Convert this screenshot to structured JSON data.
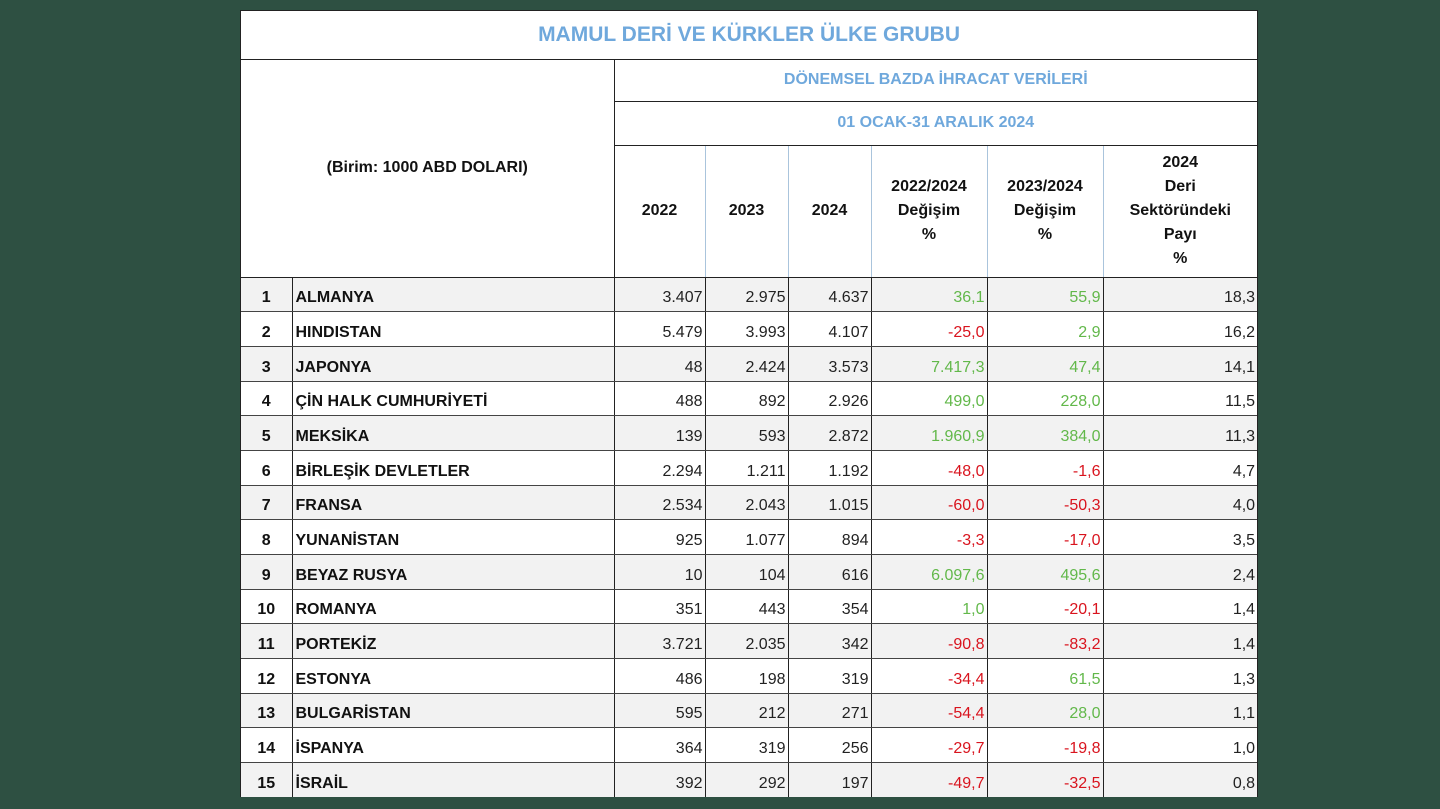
{
  "title": "MAMUL DERİ VE KÜRKLER ÜLKE GRUBU",
  "unit_label": "(Birim: 1000 ABD DOLARI)",
  "subtitle": "DÖNEMSEL BAZDA İHRACAT VERİLERİ",
  "period": "01 OCAK-31 ARALIK 2024",
  "columns": {
    "y2022": "2022",
    "y2023": "2023",
    "y2024": "2024",
    "chg2022_2024": "2022/2024\nDeğişim\n%",
    "chg2023_2024": "2023/2024\nDeğişim\n%",
    "share2024": "2024\nDeri\nSektöründeki\nPayı\n%"
  },
  "colors": {
    "title": "#6fa8dc",
    "positive": "#62b84a",
    "negative": "#d9141e",
    "background": "#2e5042"
  },
  "rows": [
    {
      "rank": "1",
      "country": "ALMANYA",
      "y2022": "3.407",
      "y2023": "2.975",
      "y2024": "4.637",
      "chg1": "36,1",
      "chg2": "55,9",
      "share": "18,3"
    },
    {
      "rank": "2",
      "country": "HINDISTAN",
      "y2022": "5.479",
      "y2023": "3.993",
      "y2024": "4.107",
      "chg1": "-25,0",
      "chg2": "2,9",
      "share": "16,2"
    },
    {
      "rank": "3",
      "country": "JAPONYA",
      "y2022": "48",
      "y2023": "2.424",
      "y2024": "3.573",
      "chg1": "7.417,3",
      "chg2": "47,4",
      "share": "14,1"
    },
    {
      "rank": "4",
      "country": "ÇİN HALK CUMHURİYETİ",
      "y2022": "488",
      "y2023": "892",
      "y2024": "2.926",
      "chg1": "499,0",
      "chg2": "228,0",
      "share": "11,5"
    },
    {
      "rank": "5",
      "country": "MEKSİKA",
      "y2022": "139",
      "y2023": "593",
      "y2024": "2.872",
      "chg1": "1.960,9",
      "chg2": "384,0",
      "share": "11,3"
    },
    {
      "rank": "6",
      "country": "BİRLEŞİK DEVLETLER",
      "y2022": "2.294",
      "y2023": "1.211",
      "y2024": "1.192",
      "chg1": "-48,0",
      "chg2": "-1,6",
      "share": "4,7"
    },
    {
      "rank": "7",
      "country": "FRANSA",
      "y2022": "2.534",
      "y2023": "2.043",
      "y2024": "1.015",
      "chg1": "-60,0",
      "chg2": "-50,3",
      "share": "4,0"
    },
    {
      "rank": "8",
      "country": "YUNANİSTAN",
      "y2022": "925",
      "y2023": "1.077",
      "y2024": "894",
      "chg1": "-3,3",
      "chg2": "-17,0",
      "share": "3,5"
    },
    {
      "rank": "9",
      "country": "BEYAZ RUSYA",
      "y2022": "10",
      "y2023": "104",
      "y2024": "616",
      "chg1": "6.097,6",
      "chg2": "495,6",
      "share": "2,4"
    },
    {
      "rank": "10",
      "country": "ROMANYA",
      "y2022": "351",
      "y2023": "443",
      "y2024": "354",
      "chg1": "1,0",
      "chg2": "-20,1",
      "share": "1,4"
    },
    {
      "rank": "11",
      "country": "PORTEKİZ",
      "y2022": "3.721",
      "y2023": "2.035",
      "y2024": "342",
      "chg1": "-90,8",
      "chg2": "-83,2",
      "share": "1,4"
    },
    {
      "rank": "12",
      "country": "ESTONYA",
      "y2022": "486",
      "y2023": "198",
      "y2024": "319",
      "chg1": "-34,4",
      "chg2": "61,5",
      "share": "1,3"
    },
    {
      "rank": "13",
      "country": "BULGARİSTAN",
      "y2022": "595",
      "y2023": "212",
      "y2024": "271",
      "chg1": "-54,4",
      "chg2": "28,0",
      "share": "1,1"
    },
    {
      "rank": "14",
      "country": "İSPANYA",
      "y2022": "364",
      "y2023": "319",
      "y2024": "256",
      "chg1": "-29,7",
      "chg2": "-19,8",
      "share": "1,0"
    },
    {
      "rank": "15",
      "country": "İSRAİL",
      "y2022": "392",
      "y2023": "292",
      "y2024": "197",
      "chg1": "-49,7",
      "chg2": "-32,5",
      "share": "0,8"
    }
  ]
}
